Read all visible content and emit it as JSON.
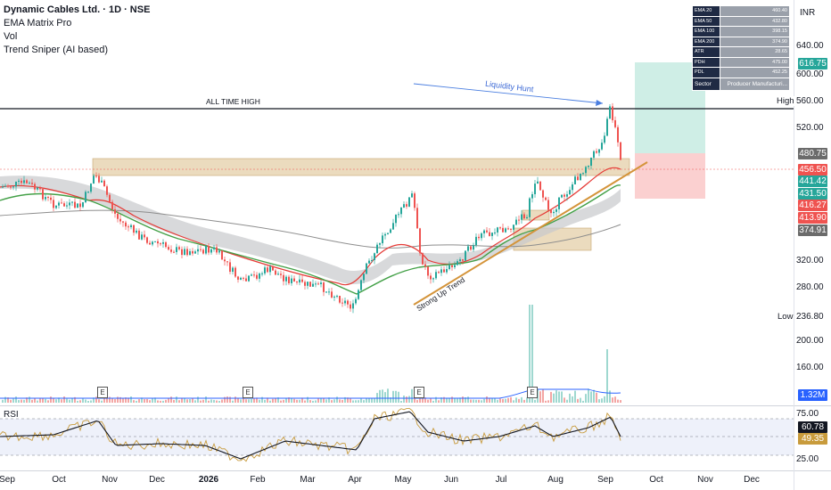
{
  "legend": {
    "title": "Dynamic Cables Ltd. · 1D · NSE",
    "indicators": [
      "EMA Matrix Pro",
      "Vol",
      "Trend Sniper (AI based)"
    ]
  },
  "currency": "INR",
  "info_table": [
    {
      "k": "EMA 20",
      "v": "460.40"
    },
    {
      "k": "EMA 50",
      "v": "432.80"
    },
    {
      "k": "EMA 100",
      "v": "398.15"
    },
    {
      "k": "EMA 200",
      "v": "374.90"
    },
    {
      "k": "ATR",
      "v": "28.65"
    },
    {
      "k": "PDH",
      "v": "475.00"
    },
    {
      "k": "PDL",
      "v": "452.25"
    },
    {
      "k": "Sector",
      "v": "Producer Manufacturi..."
    }
  ],
  "annotations": {
    "ath": "ALL TIME HIGH",
    "liquidity": "Liquidity Hunt",
    "trend": "Strong Up Trend",
    "high": "High",
    "low": "Low",
    "rsi": "RSI",
    "earnings": "E"
  },
  "price_axis": [
    "640.00",
    "600.00",
    "560.00",
    "520.00",
    "320.00",
    "280.00",
    "200.00",
    "160.00"
  ],
  "price_tags": [
    {
      "label": "616.75",
      "color": "#26a69a"
    },
    {
      "label": "480.75",
      "color": "#6b6b6b"
    },
    {
      "label": "456.50",
      "color": "#ef5350"
    },
    {
      "label": "441.42",
      "color": "#26a69a"
    },
    {
      "label": "431.50",
      "color": "#26a69a"
    },
    {
      "label": "416.27",
      "color": "#ef5350"
    },
    {
      "label": "413.90",
      "color": "#ef5350"
    },
    {
      "label": "374.91",
      "color": "#6b6b6b"
    }
  ],
  "high_value": "560.00",
  "low_value": "236.80",
  "volume_tag": "1.32M",
  "rsi_axis": [
    "75.00",
    "25.00"
  ],
  "rsi_tags": [
    {
      "label": "60.78",
      "color": "#131722"
    },
    {
      "label": "49.35",
      "color": "#c89b3c"
    }
  ],
  "time_axis": [
    {
      "label": "Sep",
      "bold": false
    },
    {
      "label": "Oct",
      "bold": false
    },
    {
      "label": "Nov",
      "bold": false
    },
    {
      "label": "Dec",
      "bold": false
    },
    {
      "label": "2026",
      "bold": true
    },
    {
      "label": "Feb",
      "bold": false
    },
    {
      "label": "Mar",
      "bold": false
    },
    {
      "label": "Apr",
      "bold": false
    },
    {
      "label": "May",
      "bold": false
    },
    {
      "label": "Jun",
      "bold": false
    },
    {
      "label": "Jul",
      "bold": false
    },
    {
      "label": "Aug",
      "bold": false
    },
    {
      "label": "Sep",
      "bold": false
    },
    {
      "label": "Oct",
      "bold": false
    },
    {
      "label": "Nov",
      "bold": false
    },
    {
      "label": "Dec",
      "bold": false
    }
  ],
  "chart_data": {
    "type": "candlestick",
    "all_time_high": 560.0,
    "period_low": 236.8,
    "last_close": 456.5,
    "ema": {
      "ema20": 460.4,
      "ema50": 432.8,
      "ema100": 398.15,
      "ema200": 374.9
    },
    "rsi": {
      "value": 60.78,
      "signal": 49.35,
      "upper": 75,
      "lower": 25
    },
    "target": 616.75,
    "stop": 413.9,
    "colors": {
      "up": "#26a69a",
      "down": "#ef5350",
      "ema_fast": "#e53935",
      "ema_slow": "#43a047",
      "ema_200": "#9e9e9e",
      "trend": "#d4943a",
      "zone": "#e4cfa8",
      "target_zone": "#cfeee6",
      "stop_zone": "#fbd0d0"
    }
  }
}
